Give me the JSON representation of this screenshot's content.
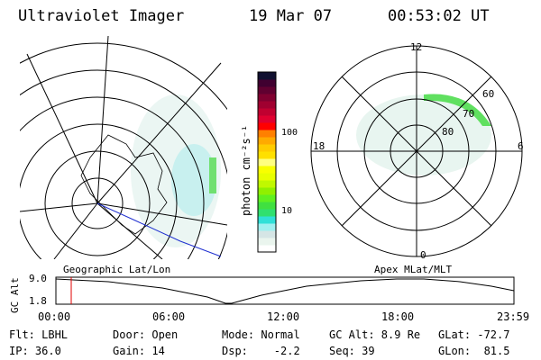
{
  "header": {
    "instrument": "Ultraviolet Imager",
    "date": "19 Mar 07",
    "time": "00:53:02 UT"
  },
  "colorbar": {
    "label": "photon cm⁻²s⁻¹",
    "ticks": [
      "100",
      "10"
    ],
    "colors": [
      "#ffffff",
      "#eaf5ee",
      "#d5e5e5",
      "#9ef0f0",
      "#30e0d8",
      "#30e070",
      "#40e040",
      "#60f020",
      "#90f000",
      "#c0f800",
      "#e8ff00",
      "#f8ff00",
      "#ffff80",
      "#ffe000",
      "#ffcc00",
      "#ffaa00",
      "#ff8000",
      "#ff0000",
      "#e00030",
      "#c00030",
      "#a00030",
      "#800030",
      "#600030",
      "#400030",
      "#101030"
    ]
  },
  "polar": {
    "mlt_labels": [
      "12",
      "18",
      "6",
      "0"
    ],
    "mlat_labels": [
      "60",
      "70",
      "80"
    ]
  },
  "panel_labels": {
    "left": "Geographic Lat/Lon",
    "right": "Apex MLat/MLT"
  },
  "alt_plot": {
    "ylabel": "GC Alt",
    "yticks": [
      "9.0",
      "1.8"
    ],
    "xticks": [
      "00:00",
      "06:00",
      "12:00",
      "18:00",
      "23:59"
    ]
  },
  "info": {
    "filter": "Flt: LBHL",
    "ip": "IP: 36.0",
    "door": "Door: Open",
    "gain": "Gain: 14",
    "mode": "Mode: Normal",
    "dsp": "Dsp:    -2.2",
    "gcalt": "GC Alt: 8.9 Re",
    "seq": "Seq: 39",
    "glat": "GLat: -72.7",
    "glon": "GLon:  81.5"
  }
}
